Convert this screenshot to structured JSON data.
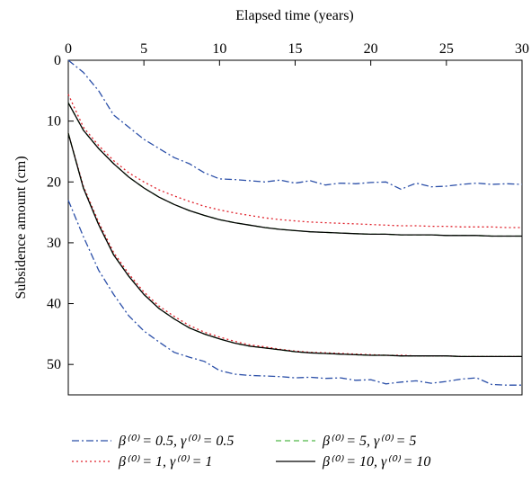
{
  "chart_data": {
    "type": "line",
    "x_label": "Elapsed time (years)",
    "y_label": "Subsidence amount (cm)",
    "x": [
      0,
      1,
      2,
      3,
      4,
      5,
      6,
      7,
      8,
      9,
      10,
      11,
      12,
      13,
      14,
      15,
      16,
      17,
      18,
      19,
      20,
      21,
      22,
      23,
      24,
      25,
      26,
      27,
      28,
      29,
      30
    ],
    "xlim": [
      0,
      30
    ],
    "xticks": [
      0,
      5,
      10,
      15,
      20,
      25,
      30
    ],
    "ylim": [
      0,
      55
    ],
    "yticks": [
      0,
      10,
      20,
      30,
      40,
      50
    ],
    "y_inverted": true,
    "x_axis_top": true,
    "series": [
      {
        "name": "β⁽⁰⁾ = 0.5, γ⁽⁰⁾ = 0.5",
        "color": "#2b4fa8",
        "dash": "8,3,2,3",
        "lines": [
          [
            0,
            2,
            5,
            9,
            11,
            13,
            14.5,
            16,
            17,
            18.5,
            19.5,
            19.6,
            19.8,
            20,
            19.7,
            20.2,
            19.8,
            20.5,
            20.2,
            20.3,
            20.1,
            20,
            21.2,
            20.2,
            20.8,
            20.7,
            20.4,
            20.2,
            20.4,
            20.3,
            20.4
          ],
          [
            23,
            29,
            34.5,
            38.5,
            42,
            44.5,
            46.3,
            48,
            48.8,
            49.5,
            51,
            51.6,
            51.8,
            51.9,
            52,
            52.2,
            52.1,
            52.3,
            52.2,
            52.6,
            52.5,
            53.2,
            52.9,
            52.7,
            53.1,
            52.8,
            52.4,
            52.2,
            53.3,
            53.4,
            53.4
          ]
        ]
      },
      {
        "name": "β⁽⁰⁾ = 1, γ⁽⁰⁾ = 1",
        "color": "#e0202a",
        "dash": "2,3",
        "lines": [
          [
            5.6,
            11,
            14,
            16.5,
            18.5,
            20,
            21.3,
            22.3,
            23.2,
            24,
            24.6,
            25.1,
            25.5,
            25.9,
            26.2,
            26.4,
            26.6,
            26.7,
            26.8,
            26.9,
            27,
            27.1,
            27.2,
            27.2,
            27.3,
            27.3,
            27.4,
            27.4,
            27.4,
            27.5,
            27.5
          ],
          [
            12,
            20.7,
            26.6,
            31.6,
            35.1,
            38.1,
            40.4,
            42.1,
            43.6,
            44.7,
            45.5,
            46.2,
            46.8,
            47.1,
            47.5,
            47.8,
            48,
            48.1,
            48.2,
            48.3,
            48.4,
            48.5,
            48.5,
            48.6,
            48.6,
            48.6,
            48.7,
            48.7,
            48.7,
            48.7,
            48.7
          ]
        ]
      },
      {
        "name": "β⁽⁰⁾ = 5, γ⁽⁰⁾ = 5",
        "color": "#4fb848",
        "dash": "6,4",
        "lines": [
          [
            7,
            11.5,
            14.5,
            17,
            19.2,
            21,
            22.5,
            23.7,
            24.7,
            25.5,
            26.2,
            26.7,
            27.1,
            27.5,
            27.8,
            28,
            28.2,
            28.3,
            28.4,
            28.5,
            28.6,
            28.6,
            28.7,
            28.7,
            28.7,
            28.8,
            28.8,
            28.8,
            28.9,
            28.9,
            28.9
          ],
          [
            12,
            21,
            27,
            32,
            35.5,
            38.5,
            40.8,
            42.5,
            44,
            45,
            45.8,
            46.5,
            47,
            47.3,
            47.6,
            47.9,
            48.1,
            48.2,
            48.3,
            48.4,
            48.5,
            48.5,
            48.6,
            48.6,
            48.6,
            48.6,
            48.7,
            48.7,
            48.7,
            48.7,
            48.7
          ]
        ]
      },
      {
        "name": "β⁽⁰⁾ = 10, γ⁽⁰⁾ = 10",
        "color": "#000000",
        "dash": "none",
        "lines": [
          [
            7,
            11.5,
            14.5,
            17,
            19.2,
            21,
            22.5,
            23.7,
            24.7,
            25.5,
            26.2,
            26.7,
            27.1,
            27.5,
            27.8,
            28,
            28.2,
            28.3,
            28.4,
            28.5,
            28.6,
            28.6,
            28.7,
            28.7,
            28.7,
            28.8,
            28.8,
            28.8,
            28.9,
            28.9,
            28.9
          ],
          [
            12,
            21,
            27,
            32,
            35.5,
            38.5,
            40.8,
            42.5,
            44,
            45,
            45.8,
            46.5,
            47,
            47.3,
            47.6,
            47.9,
            48.1,
            48.2,
            48.3,
            48.4,
            48.5,
            48.5,
            48.6,
            48.6,
            48.6,
            48.6,
            48.7,
            48.7,
            48.7,
            48.7,
            48.7
          ]
        ]
      }
    ]
  }
}
